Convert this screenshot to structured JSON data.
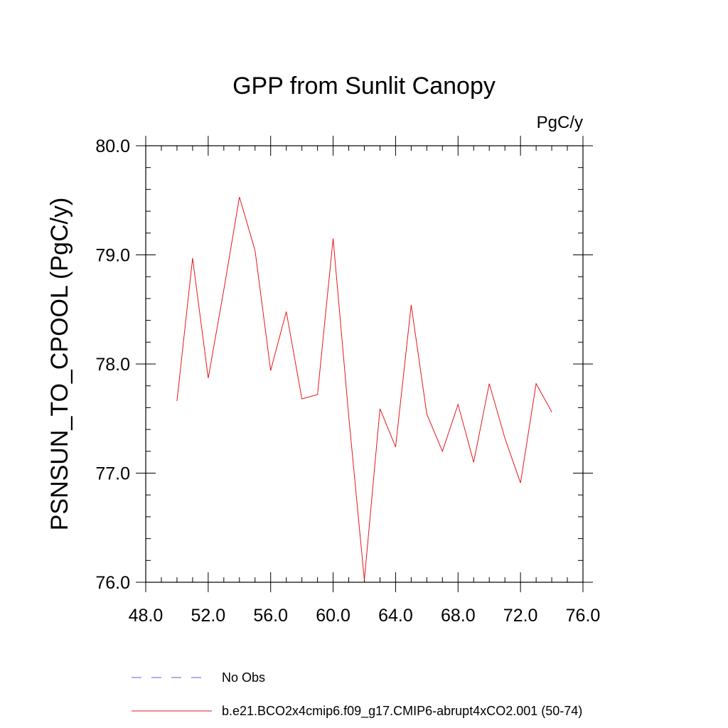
{
  "chart_data": {
    "type": "line",
    "title": "GPP from Sunlit Canopy",
    "units": "PgC/y",
    "ylabel": "PSNSUN_TO_CPOOL  (PgC/y)",
    "xlabel": "",
    "xlim": [
      48,
      76
    ],
    "ylim": [
      76,
      80
    ],
    "xticks": [
      48,
      52,
      56,
      60,
      64,
      68,
      72,
      76
    ],
    "xtick_labels": [
      "48.0",
      "52.0",
      "56.0",
      "60.0",
      "64.0",
      "68.0",
      "72.0",
      "76.0"
    ],
    "yticks": [
      76,
      77,
      78,
      79,
      80
    ],
    "ytick_labels": [
      "76.0",
      "77.0",
      "78.0",
      "79.0",
      "80.0"
    ],
    "grid": false,
    "legend_position": "bottom",
    "series": [
      {
        "name": "No Obs",
        "color": "#6a5acd",
        "style": "dashed",
        "x": [],
        "y": []
      },
      {
        "name": "b.e21.BCO2x4cmip6.f09_g17.CMIP6-abrupt4xCO2.001 (50-74)",
        "color": "#e8161a",
        "style": "solid",
        "x": [
          50,
          51,
          52,
          53,
          54,
          55,
          56,
          57,
          58,
          59,
          60,
          61,
          62,
          63,
          64,
          65,
          66,
          67,
          68,
          69,
          70,
          71,
          72,
          73,
          74
        ],
        "y": [
          77.66,
          78.97,
          77.87,
          78.68,
          79.53,
          79.04,
          77.94,
          78.48,
          77.68,
          77.72,
          79.15,
          77.52,
          76.02,
          77.59,
          77.24,
          78.54,
          77.54,
          77.2,
          77.63,
          77.1,
          77.82,
          77.32,
          76.91,
          77.82,
          77.56
        ]
      }
    ]
  }
}
